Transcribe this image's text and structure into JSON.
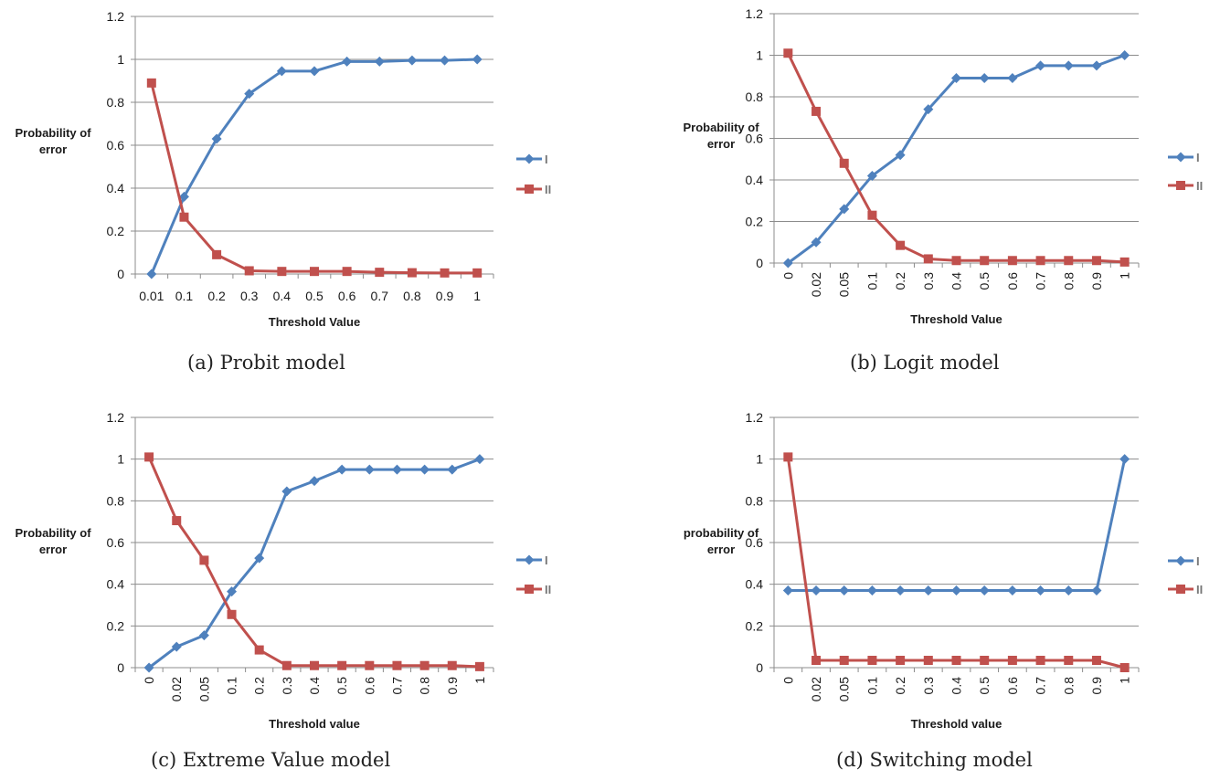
{
  "colors": {
    "series_I": "#4F81BD",
    "series_II": "#C0504D",
    "grid": "#8C8C8C",
    "axis": "#8C8C8C",
    "text": "#1a1a1a"
  },
  "chart_data": [
    {
      "type": "line",
      "caption": "(a) Probit model",
      "xlabel": "Threshold Value",
      "ylabel": "Probability of error",
      "ylim": [
        0,
        1.2
      ],
      "yticks": [
        "0",
        "0.2",
        "0.4",
        "0.6",
        "0.8",
        "1",
        "1.2"
      ],
      "grid": true,
      "legend": "right",
      "x_tick_rotation": "horizontal",
      "categories": [
        "0.01",
        "0.1",
        "0.2",
        "0.3",
        "0.4",
        "0.5",
        "0.6",
        "0.7",
        "0.8",
        "0.9",
        "1"
      ],
      "series": [
        {
          "name": "I",
          "marker": "diamond",
          "values": [
            0.0,
            0.36,
            0.63,
            0.84,
            0.945,
            0.945,
            0.99,
            0.99,
            0.995,
            0.995,
            1.0
          ]
        },
        {
          "name": "II",
          "marker": "square",
          "values": [
            0.89,
            0.265,
            0.09,
            0.015,
            0.012,
            0.012,
            0.012,
            0.008,
            0.006,
            0.005,
            0.005
          ]
        }
      ]
    },
    {
      "type": "line",
      "caption": "(b) Logit model",
      "xlabel": "Threshold Value",
      "ylabel": "Probability of error",
      "ylim": [
        0,
        1.2
      ],
      "yticks": [
        "0",
        "0.2",
        "0.4",
        "0.6",
        "0.8",
        "1",
        "1.2"
      ],
      "grid": true,
      "legend": "right",
      "x_tick_rotation": "vertical",
      "categories": [
        "0",
        "0.02",
        "0.05",
        "0.1",
        "0.2",
        "0.3",
        "0.4",
        "0.5",
        "0.6",
        "0.7",
        "0.8",
        "0.9",
        "1"
      ],
      "series": [
        {
          "name": "I",
          "marker": "diamond",
          "values": [
            0.0,
            0.1,
            0.26,
            0.42,
            0.52,
            0.74,
            0.89,
            0.89,
            0.89,
            0.95,
            0.95,
            0.95,
            1.0
          ]
        },
        {
          "name": "II",
          "marker": "square",
          "values": [
            1.01,
            0.73,
            0.48,
            0.23,
            0.085,
            0.02,
            0.012,
            0.012,
            0.012,
            0.012,
            0.012,
            0.012,
            0.005
          ]
        }
      ]
    },
    {
      "type": "line",
      "caption": "(c) Extreme Value model",
      "xlabel": "Threshold value",
      "ylabel": "Probability of error",
      "ylim": [
        0,
        1.2
      ],
      "yticks": [
        "0",
        "0.2",
        "0.4",
        "0.6",
        "0.8",
        "1",
        "1.2"
      ],
      "grid": true,
      "legend": "right",
      "x_tick_rotation": "vertical",
      "categories": [
        "0",
        "0.02",
        "0.05",
        "0.1",
        "0.2",
        "0.3",
        "0.4",
        "0.5",
        "0.6",
        "0.7",
        "0.8",
        "0.9",
        "1"
      ],
      "series": [
        {
          "name": "I",
          "marker": "diamond",
          "values": [
            0.0,
            0.1,
            0.155,
            0.365,
            0.525,
            0.845,
            0.895,
            0.95,
            0.95,
            0.95,
            0.95,
            0.95,
            1.0
          ]
        },
        {
          "name": "II",
          "marker": "square",
          "values": [
            1.01,
            0.705,
            0.515,
            0.255,
            0.085,
            0.01,
            0.01,
            0.01,
            0.01,
            0.01,
            0.01,
            0.01,
            0.005
          ]
        }
      ]
    },
    {
      "type": "line",
      "caption": "(d) Switching model",
      "xlabel": "Threshold value",
      "ylabel": "probability of error",
      "ylim": [
        0,
        1.2
      ],
      "yticks": [
        "0",
        "0.2",
        "0.4",
        "0.6",
        "0.8",
        "1",
        "1.2"
      ],
      "grid": true,
      "legend": "right",
      "x_tick_rotation": "vertical",
      "categories": [
        "0",
        "0.02",
        "0.05",
        "0.1",
        "0.2",
        "0.3",
        "0.4",
        "0.5",
        "0.6",
        "0.7",
        "0.8",
        "0.9",
        "1"
      ],
      "series": [
        {
          "name": "I",
          "marker": "diamond",
          "values": [
            0.37,
            0.37,
            0.37,
            0.37,
            0.37,
            0.37,
            0.37,
            0.37,
            0.37,
            0.37,
            0.37,
            0.37,
            1.0
          ]
        },
        {
          "name": "II",
          "marker": "square",
          "values": [
            1.01,
            0.035,
            0.035,
            0.035,
            0.035,
            0.035,
            0.035,
            0.035,
            0.035,
            0.035,
            0.035,
            0.035,
            0.0
          ]
        }
      ]
    }
  ]
}
